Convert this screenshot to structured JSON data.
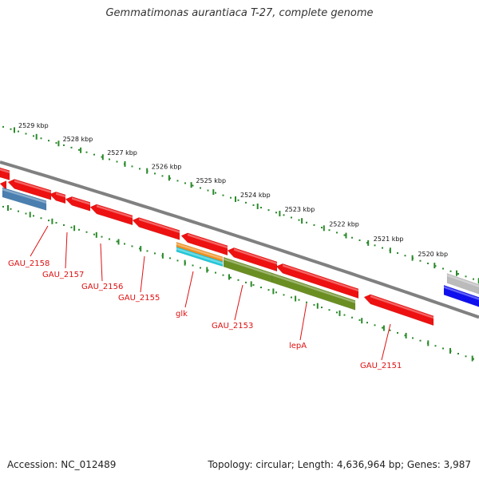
{
  "title": "Gemmatimonas aurantiaca T-27, complete genome",
  "accession_text": "Accession: NC_012489",
  "topology_text": "Topology: circular; Length: 4,636,964 bp; Genes: 3,987",
  "colors": {
    "backbone": "#808080",
    "ruler": "#2a8a2a",
    "gene_default": "#ee1111",
    "label": "#dd1111",
    "steelblue": "#4a7fb0",
    "olive": "#6b8e23",
    "orange": "#f09020",
    "cyan": "#20c8d8",
    "gray": "#bbbbbb",
    "blue": "#1010ee"
  },
  "ruler": [
    {
      "label": "2529 kbp"
    },
    {
      "label": "2528 kbp"
    },
    {
      "label": "2527 kbp"
    },
    {
      "label": "2526 kbp"
    },
    {
      "label": "2525 kbp"
    },
    {
      "label": "2524 kbp"
    },
    {
      "label": "2523 kbp"
    },
    {
      "label": "2522 kbp"
    },
    {
      "label": "2521 kbp"
    },
    {
      "label": "2520 kbp"
    }
  ],
  "gene_labels": [
    {
      "name": "GAU_2158"
    },
    {
      "name": "GAU_2157"
    },
    {
      "name": "GAU_2156"
    },
    {
      "name": "GAU_2155"
    },
    {
      "name": "glk"
    },
    {
      "name": "GAU_2153"
    },
    {
      "name": "lepA"
    },
    {
      "name": "GAU_2151"
    }
  ]
}
